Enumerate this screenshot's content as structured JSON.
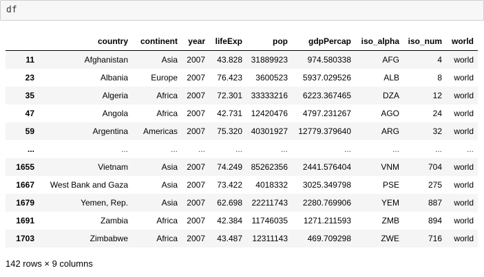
{
  "input": {
    "code": "df"
  },
  "table": {
    "columns": [
      "country",
      "continent",
      "year",
      "lifeExp",
      "pop",
      "gdpPercap",
      "iso_alpha",
      "iso_num",
      "world"
    ],
    "rows": [
      {
        "index": "11",
        "cells": [
          "Afghanistan",
          "Asia",
          "2007",
          "43.828",
          "31889923",
          "974.580338",
          "AFG",
          "4",
          "world"
        ]
      },
      {
        "index": "23",
        "cells": [
          "Albania",
          "Europe",
          "2007",
          "76.423",
          "3600523",
          "5937.029526",
          "ALB",
          "8",
          "world"
        ]
      },
      {
        "index": "35",
        "cells": [
          "Algeria",
          "Africa",
          "2007",
          "72.301",
          "33333216",
          "6223.367465",
          "DZA",
          "12",
          "world"
        ]
      },
      {
        "index": "47",
        "cells": [
          "Angola",
          "Africa",
          "2007",
          "42.731",
          "12420476",
          "4797.231267",
          "AGO",
          "24",
          "world"
        ]
      },
      {
        "index": "59",
        "cells": [
          "Argentina",
          "Americas",
          "2007",
          "75.320",
          "40301927",
          "12779.379640",
          "ARG",
          "32",
          "world"
        ]
      },
      {
        "index": "...",
        "cells": [
          "...",
          "...",
          "...",
          "...",
          "...",
          "...",
          "...",
          "...",
          "..."
        ]
      },
      {
        "index": "1655",
        "cells": [
          "Vietnam",
          "Asia",
          "2007",
          "74.249",
          "85262356",
          "2441.576404",
          "VNM",
          "704",
          "world"
        ]
      },
      {
        "index": "1667",
        "cells": [
          "West Bank and Gaza",
          "Asia",
          "2007",
          "73.422",
          "4018332",
          "3025.349798",
          "PSE",
          "275",
          "world"
        ]
      },
      {
        "index": "1679",
        "cells": [
          "Yemen, Rep.",
          "Asia",
          "2007",
          "62.698",
          "22211743",
          "2280.769906",
          "YEM",
          "887",
          "world"
        ]
      },
      {
        "index": "1691",
        "cells": [
          "Zambia",
          "Africa",
          "2007",
          "42.384",
          "11746035",
          "1271.211593",
          "ZMB",
          "894",
          "world"
        ]
      },
      {
        "index": "1703",
        "cells": [
          "Zimbabwe",
          "Africa",
          "2007",
          "43.487",
          "12311143",
          "469.709298",
          "ZWE",
          "716",
          "world"
        ]
      }
    ]
  },
  "summary": "142 rows × 9 columns"
}
